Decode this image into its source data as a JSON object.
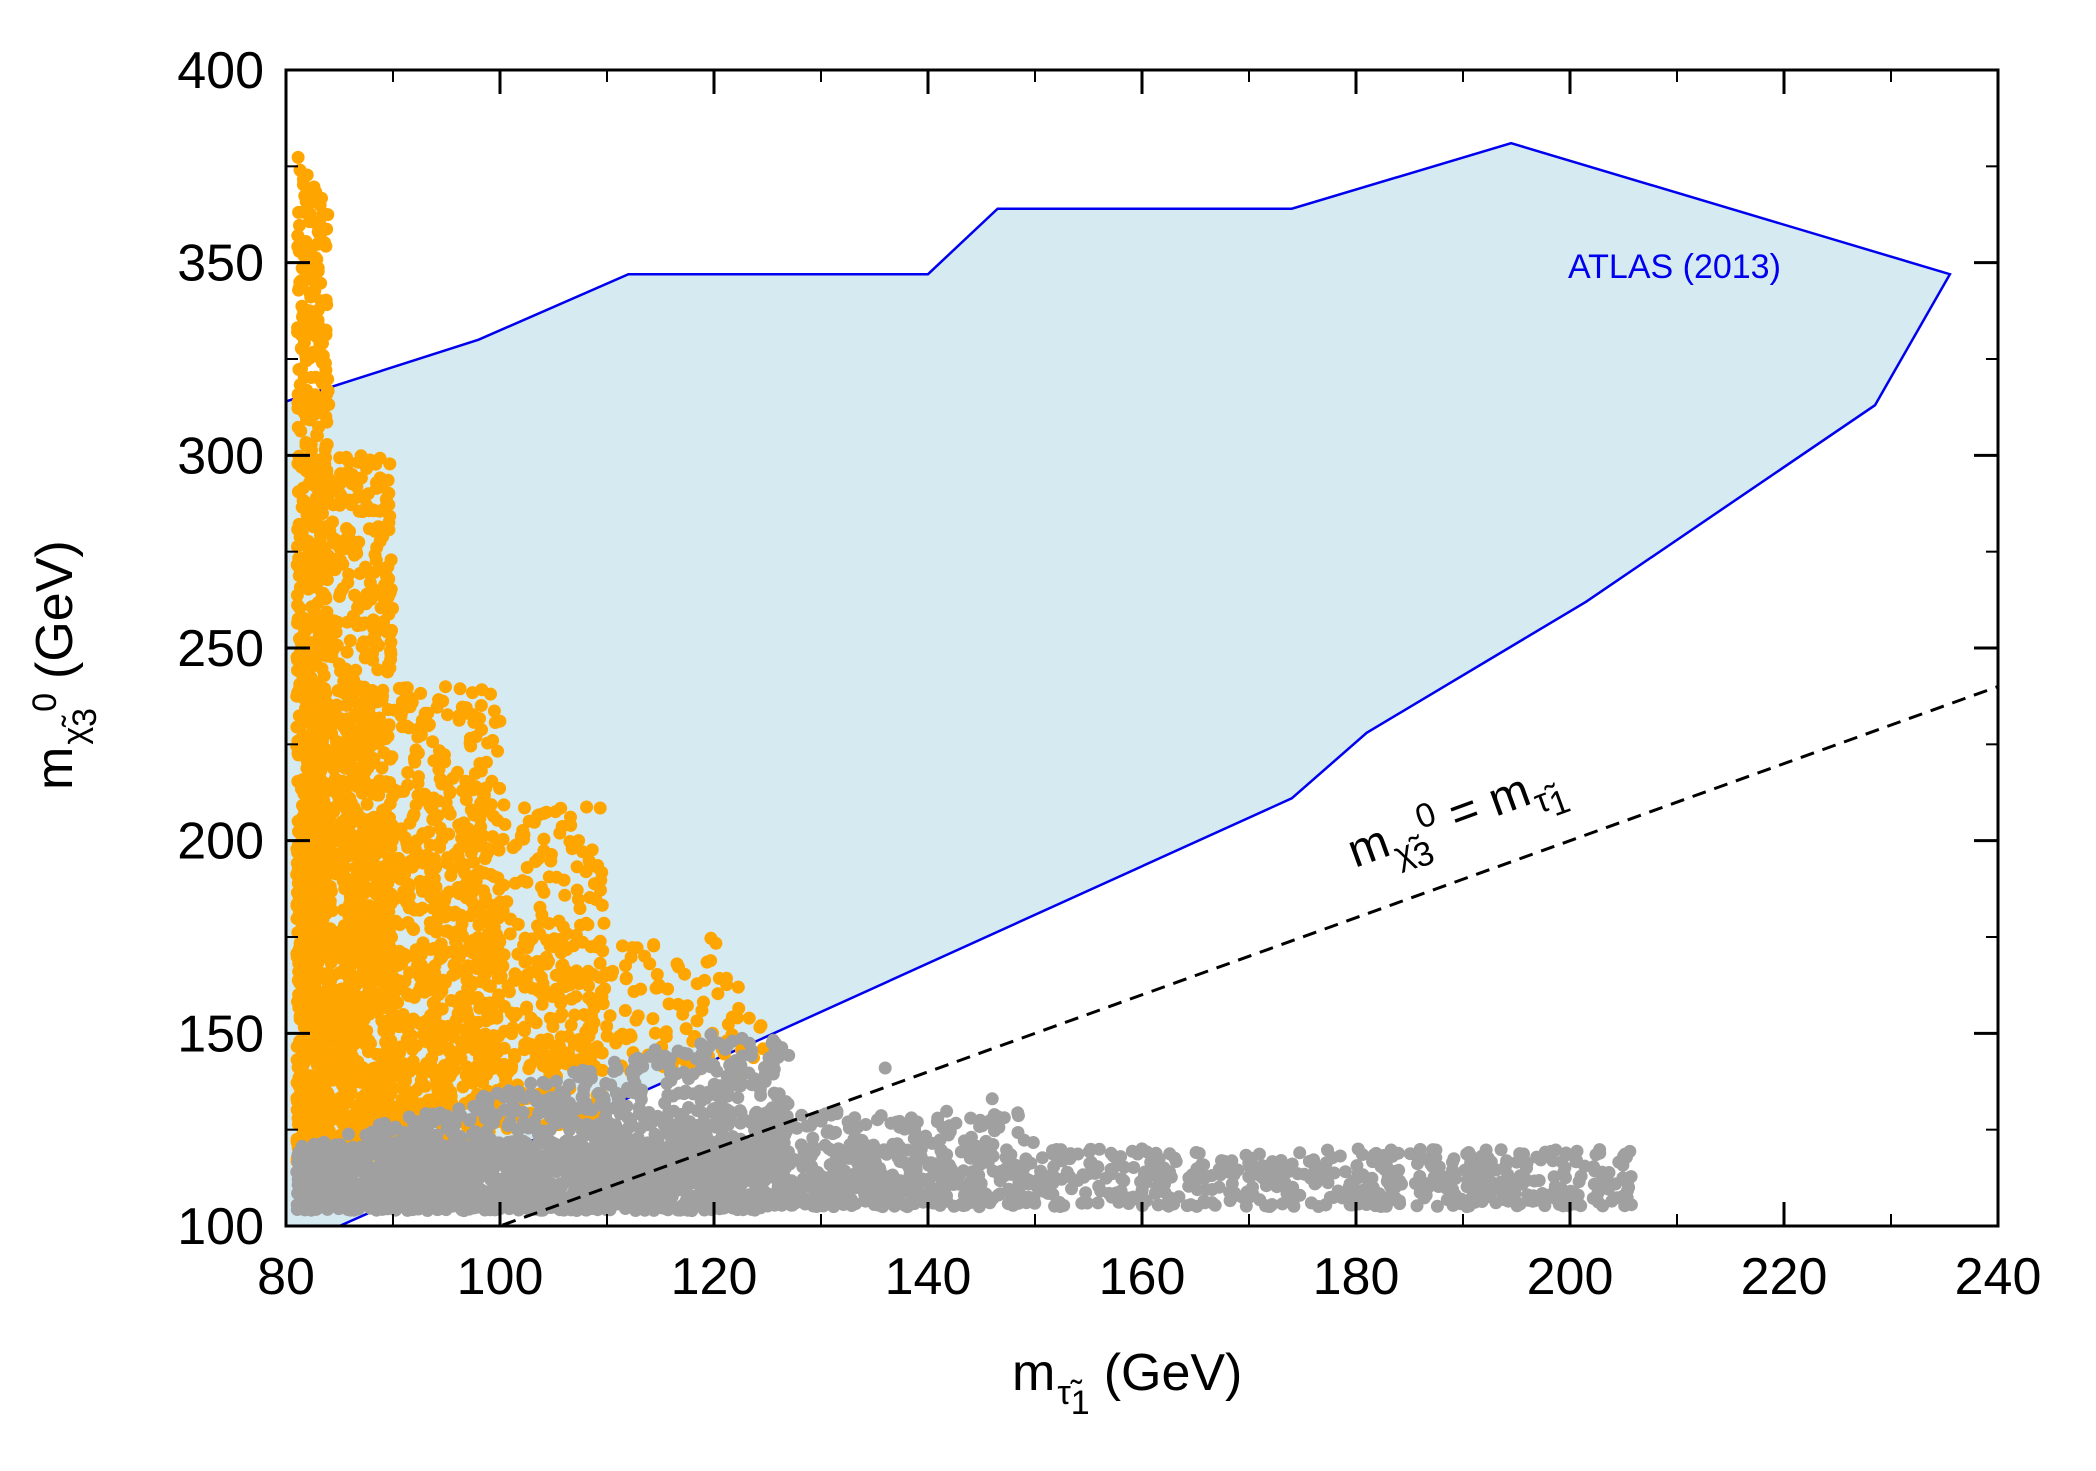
{
  "chart_data": {
    "type": "scatter",
    "title": "",
    "xlabel": {
      "main": "m",
      "sub": "τ̃",
      "subsub": "1",
      "unit": "(GeV)"
    },
    "ylabel": {
      "main": "m",
      "sub": "χ̃",
      "subsub": "3",
      "sup": "0",
      "unit": "(GeV)"
    },
    "xlim": [
      80,
      240
    ],
    "ylim": [
      100,
      400
    ],
    "xticks": [
      80,
      100,
      120,
      140,
      160,
      180,
      200,
      220,
      240
    ],
    "yticks": [
      100,
      150,
      200,
      250,
      300,
      350,
      400
    ],
    "grid": false,
    "colors": {
      "region_fill": "#d6eaf2",
      "region_line": "#0000ee",
      "orange_points": "#ffa500",
      "gray_points": "#a0a0a0",
      "diagonal": "#000000"
    },
    "excluded_region": {
      "name": "ATLAS (2013)",
      "polygon": [
        [
          80,
          314
        ],
        [
          98,
          330
        ],
        [
          112,
          347
        ],
        [
          140,
          347
        ],
        [
          146.5,
          364
        ],
        [
          174,
          364
        ],
        [
          194.5,
          381
        ],
        [
          235.5,
          347
        ],
        [
          228.5,
          313
        ],
        [
          201.5,
          262
        ],
        [
          181,
          228
        ],
        [
          174,
          211
        ],
        [
          124,
          148
        ],
        [
          85,
          100
        ],
        [
          80,
          100
        ]
      ]
    },
    "diagonal_line": {
      "from": [
        80,
        80
      ],
      "to": [
        240,
        240
      ],
      "label_main": "m",
      "label_sub": "χ̃",
      "label_subsub": "3",
      "label_sup": "0",
      "label_eq": "=",
      "label_main2": "m",
      "label_sub2": "τ̃",
      "label_subsub2": "1"
    },
    "series": [
      {
        "color_key": "orange_points",
        "clusters": [
          {
            "x": [
              81,
              84
            ],
            "y": [
              110,
              380
            ],
            "n": 650
          },
          {
            "x": [
              81,
              90
            ],
            "y": [
              115,
              300
            ],
            "n": 900
          },
          {
            "x": [
              81,
              100
            ],
            "y": [
              115,
              240
            ],
            "n": 900
          },
          {
            "x": [
              85,
              110
            ],
            "y": [
              125,
              210
            ],
            "n": 600
          },
          {
            "x": [
              95,
              125
            ],
            "y": [
              140,
              175
            ],
            "n": 220
          }
        ]
      },
      {
        "color_key": "gray_points",
        "clusters": [
          {
            "x": [
              81,
              125
            ],
            "y": [
              104,
              122
            ],
            "n": 1400
          },
          {
            "x": [
              84,
              127
            ],
            "y": [
              115,
              150
            ],
            "n": 900
          },
          {
            "x": [
              110,
              150
            ],
            "y": [
              105,
              130
            ],
            "n": 450
          },
          {
            "x": [
              125,
              206
            ],
            "y": [
              105,
              120
            ],
            "n": 700
          }
        ],
        "extra_points": [
          [
            136,
            141
          ],
          [
            139,
            127
          ],
          [
            142,
            126
          ],
          [
            146,
            133
          ],
          [
            158,
            118
          ],
          [
            160,
            120
          ],
          [
            173,
            117
          ],
          [
            187,
            116
          ],
          [
            203,
            114
          ]
        ]
      }
    ]
  }
}
